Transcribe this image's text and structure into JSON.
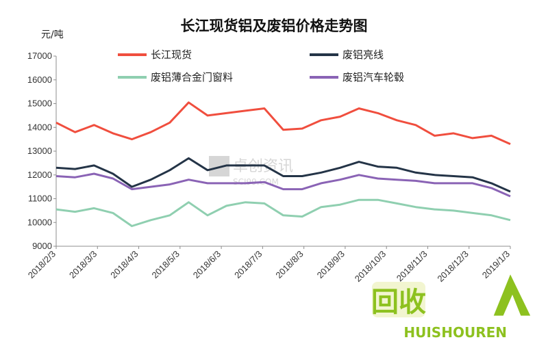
{
  "chart_data": {
    "type": "line",
    "title": "长江现货铝及废铝价格走势图",
    "ylabel": "元/吨",
    "xlabel": "",
    "ylim": [
      9000,
      17000
    ],
    "yticks": [
      9000,
      10000,
      11000,
      12000,
      13000,
      14000,
      15000,
      16000,
      17000
    ],
    "x_tick_labels": [
      "2018/2/3",
      "2018/3/3",
      "2018/4/3",
      "2018/5/3",
      "2018/6/3",
      "2018/7/3",
      "2018/8/3",
      "2018/9/3",
      "2018/10/3",
      "2018/11/3",
      "2018/12/3",
      "2019/1/3"
    ],
    "legend_position": "top, two columns",
    "grid": "none",
    "x": [
      "2018/2/3",
      "2018/2/17",
      "2018/3/3",
      "2018/3/17",
      "2018/4/3",
      "2018/4/10",
      "2018/4/17",
      "2018/4/24",
      "2018/5/3",
      "2018/5/17",
      "2018/6/3",
      "2018/6/17",
      "2018/7/3",
      "2018/7/17",
      "2018/8/3",
      "2018/8/17",
      "2018/9/3",
      "2018/9/17",
      "2018/10/3",
      "2018/10/17",
      "2018/11/3",
      "2018/11/17",
      "2018/12/3",
      "2018/12/17",
      "2019/1/3"
    ],
    "series": [
      {
        "name": "长江现货",
        "color": "#f04e3e",
        "values": [
          14200,
          13800,
          14100,
          13750,
          13500,
          13800,
          14200,
          15050,
          14500,
          14600,
          14700,
          14800,
          13900,
          13950,
          14300,
          14450,
          14800,
          14600,
          14300,
          14100,
          13650,
          13750,
          13550,
          13650,
          13300
        ]
      },
      {
        "name": "废铝亮线",
        "color": "#243447",
        "values": [
          12300,
          12250,
          12400,
          12050,
          11500,
          11800,
          12200,
          12700,
          12200,
          12400,
          12400,
          12400,
          11950,
          11950,
          12100,
          12300,
          12550,
          12350,
          12300,
          12100,
          12000,
          11950,
          11900,
          11650,
          11300
        ]
      },
      {
        "name": "废铝薄合金门窗料",
        "color": "#8fcfb0",
        "values": [
          10550,
          10450,
          10600,
          10400,
          9850,
          10100,
          10300,
          10850,
          10300,
          10700,
          10850,
          10800,
          10300,
          10250,
          10650,
          10750,
          10950,
          10950,
          10800,
          10650,
          10550,
          10500,
          10400,
          10300,
          10100
        ]
      },
      {
        "name": "废铝汽车轮毂",
        "color": "#8a63b5",
        "values": [
          11950,
          11900,
          12050,
          11850,
          11400,
          11500,
          11600,
          11800,
          11650,
          11650,
          11650,
          11700,
          11400,
          11400,
          11650,
          11800,
          12000,
          11850,
          11800,
          11750,
          11650,
          11650,
          11650,
          11450,
          11100
        ]
      }
    ]
  },
  "watermark": {
    "text": "卓创资讯",
    "sub": "SCI99.COM"
  },
  "logo": {
    "cn": "回收",
    "en": "HUISHOUREN"
  }
}
